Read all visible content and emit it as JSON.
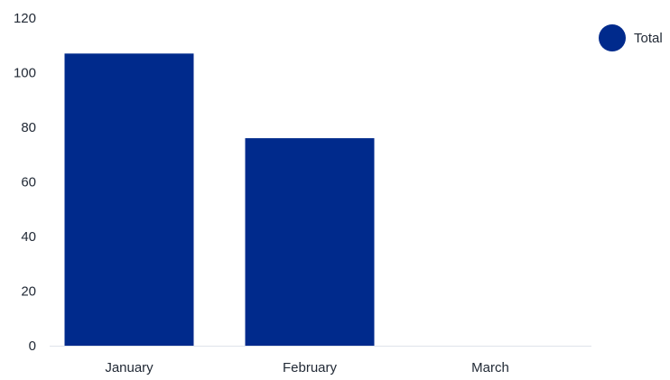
{
  "chart_data": {
    "type": "bar",
    "categories": [
      "January",
      "February",
      "March"
    ],
    "series": [
      {
        "name": "Total",
        "values": [
          107,
          76,
          0
        ],
        "color": "#002a8c"
      }
    ],
    "ylim": [
      0,
      120
    ],
    "yticks": [
      0,
      20,
      40,
      60,
      80,
      100,
      120
    ],
    "grid": false,
    "legend": {
      "position": "top-right",
      "marker": "circle"
    }
  }
}
